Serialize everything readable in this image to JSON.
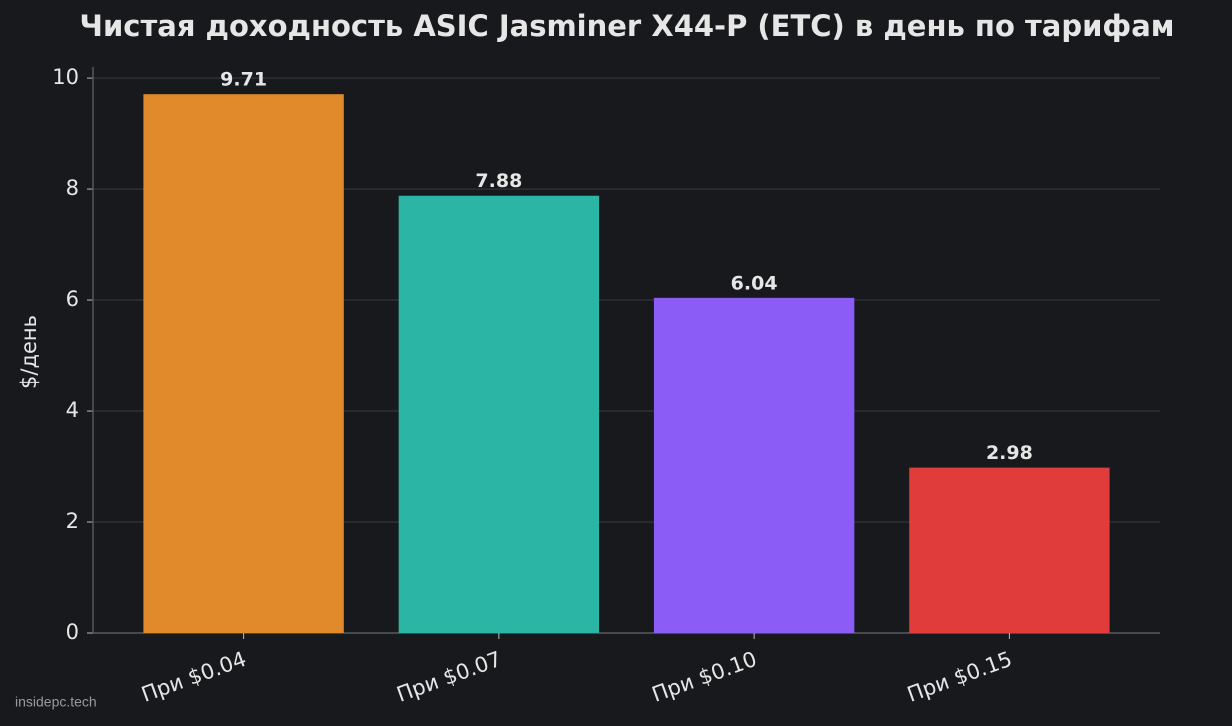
{
  "chart_data": {
    "type": "bar",
    "title": "Чистая доходность ASIC Jasminer X44-P (ETC) в день по тарифам",
    "y_label": "$/день",
    "categories": [
      "При $0.04",
      "При $0.07",
      "При $0.10",
      "При $0.15"
    ],
    "values": [
      9.71,
      7.88,
      6.04,
      2.98
    ],
    "colors": [
      "#e08a2c",
      "#2bb5a5",
      "#8b5cf6",
      "#e03c3c"
    ],
    "ylim": [
      0,
      10.2
    ],
    "yticks": [
      0,
      2,
      4,
      6,
      8,
      10
    ],
    "grid": true,
    "watermark": "insidepc.tech"
  }
}
